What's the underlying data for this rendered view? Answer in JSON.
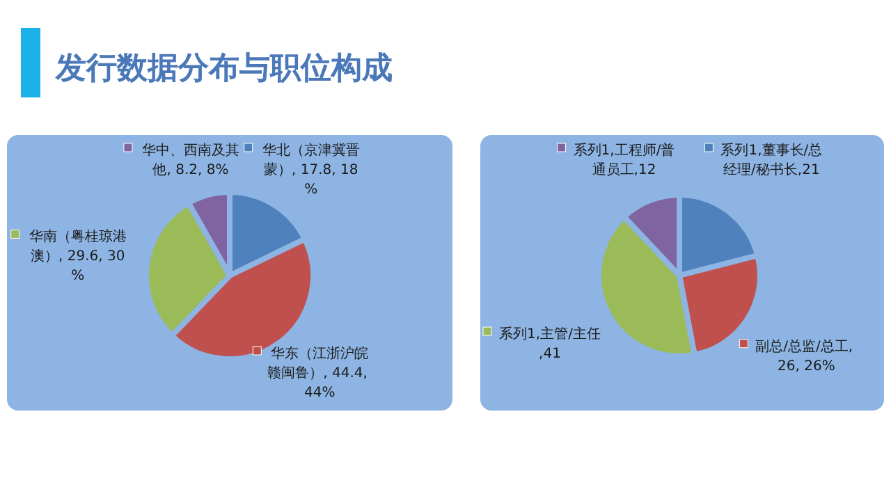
{
  "chart_data": [
    {
      "type": "pie",
      "title": "发行数据分布与职位构成",
      "categories": [
        "华北（京津冀晋蒙）",
        "华东（江浙沪皖赣闽鲁）",
        "华南（粤桂琼港澳）",
        "华中、西南及其他"
      ],
      "values": [
        17.8,
        44.4,
        29.6,
        8.2
      ],
      "value_labels": [
        ", 17.8, 18%",
        ", 44.4, 44%",
        ", 29.6, 30%",
        ", 8.2, 8%"
      ],
      "colors": [
        "#4f81bd",
        "#c0504d",
        "#9bbb59",
        "#8064a2"
      ],
      "legend": "top left"
    },
    {
      "type": "pie",
      "categories": [
        "系列1,董事长/总经理/秘书长",
        "副总/总监/总工",
        "系列1,主管/主任",
        "系列1,工程师/普通员工"
      ],
      "values": [
        21,
        26,
        41,
        12
      ],
      "value_labels": [
        ",21",
        ", 26, 26%",
        ",41",
        ",12"
      ],
      "colors": [
        "#4f81bd",
        "#c0504d",
        "#9bbb59",
        "#8064a2"
      ],
      "legend": "top left"
    }
  ]
}
